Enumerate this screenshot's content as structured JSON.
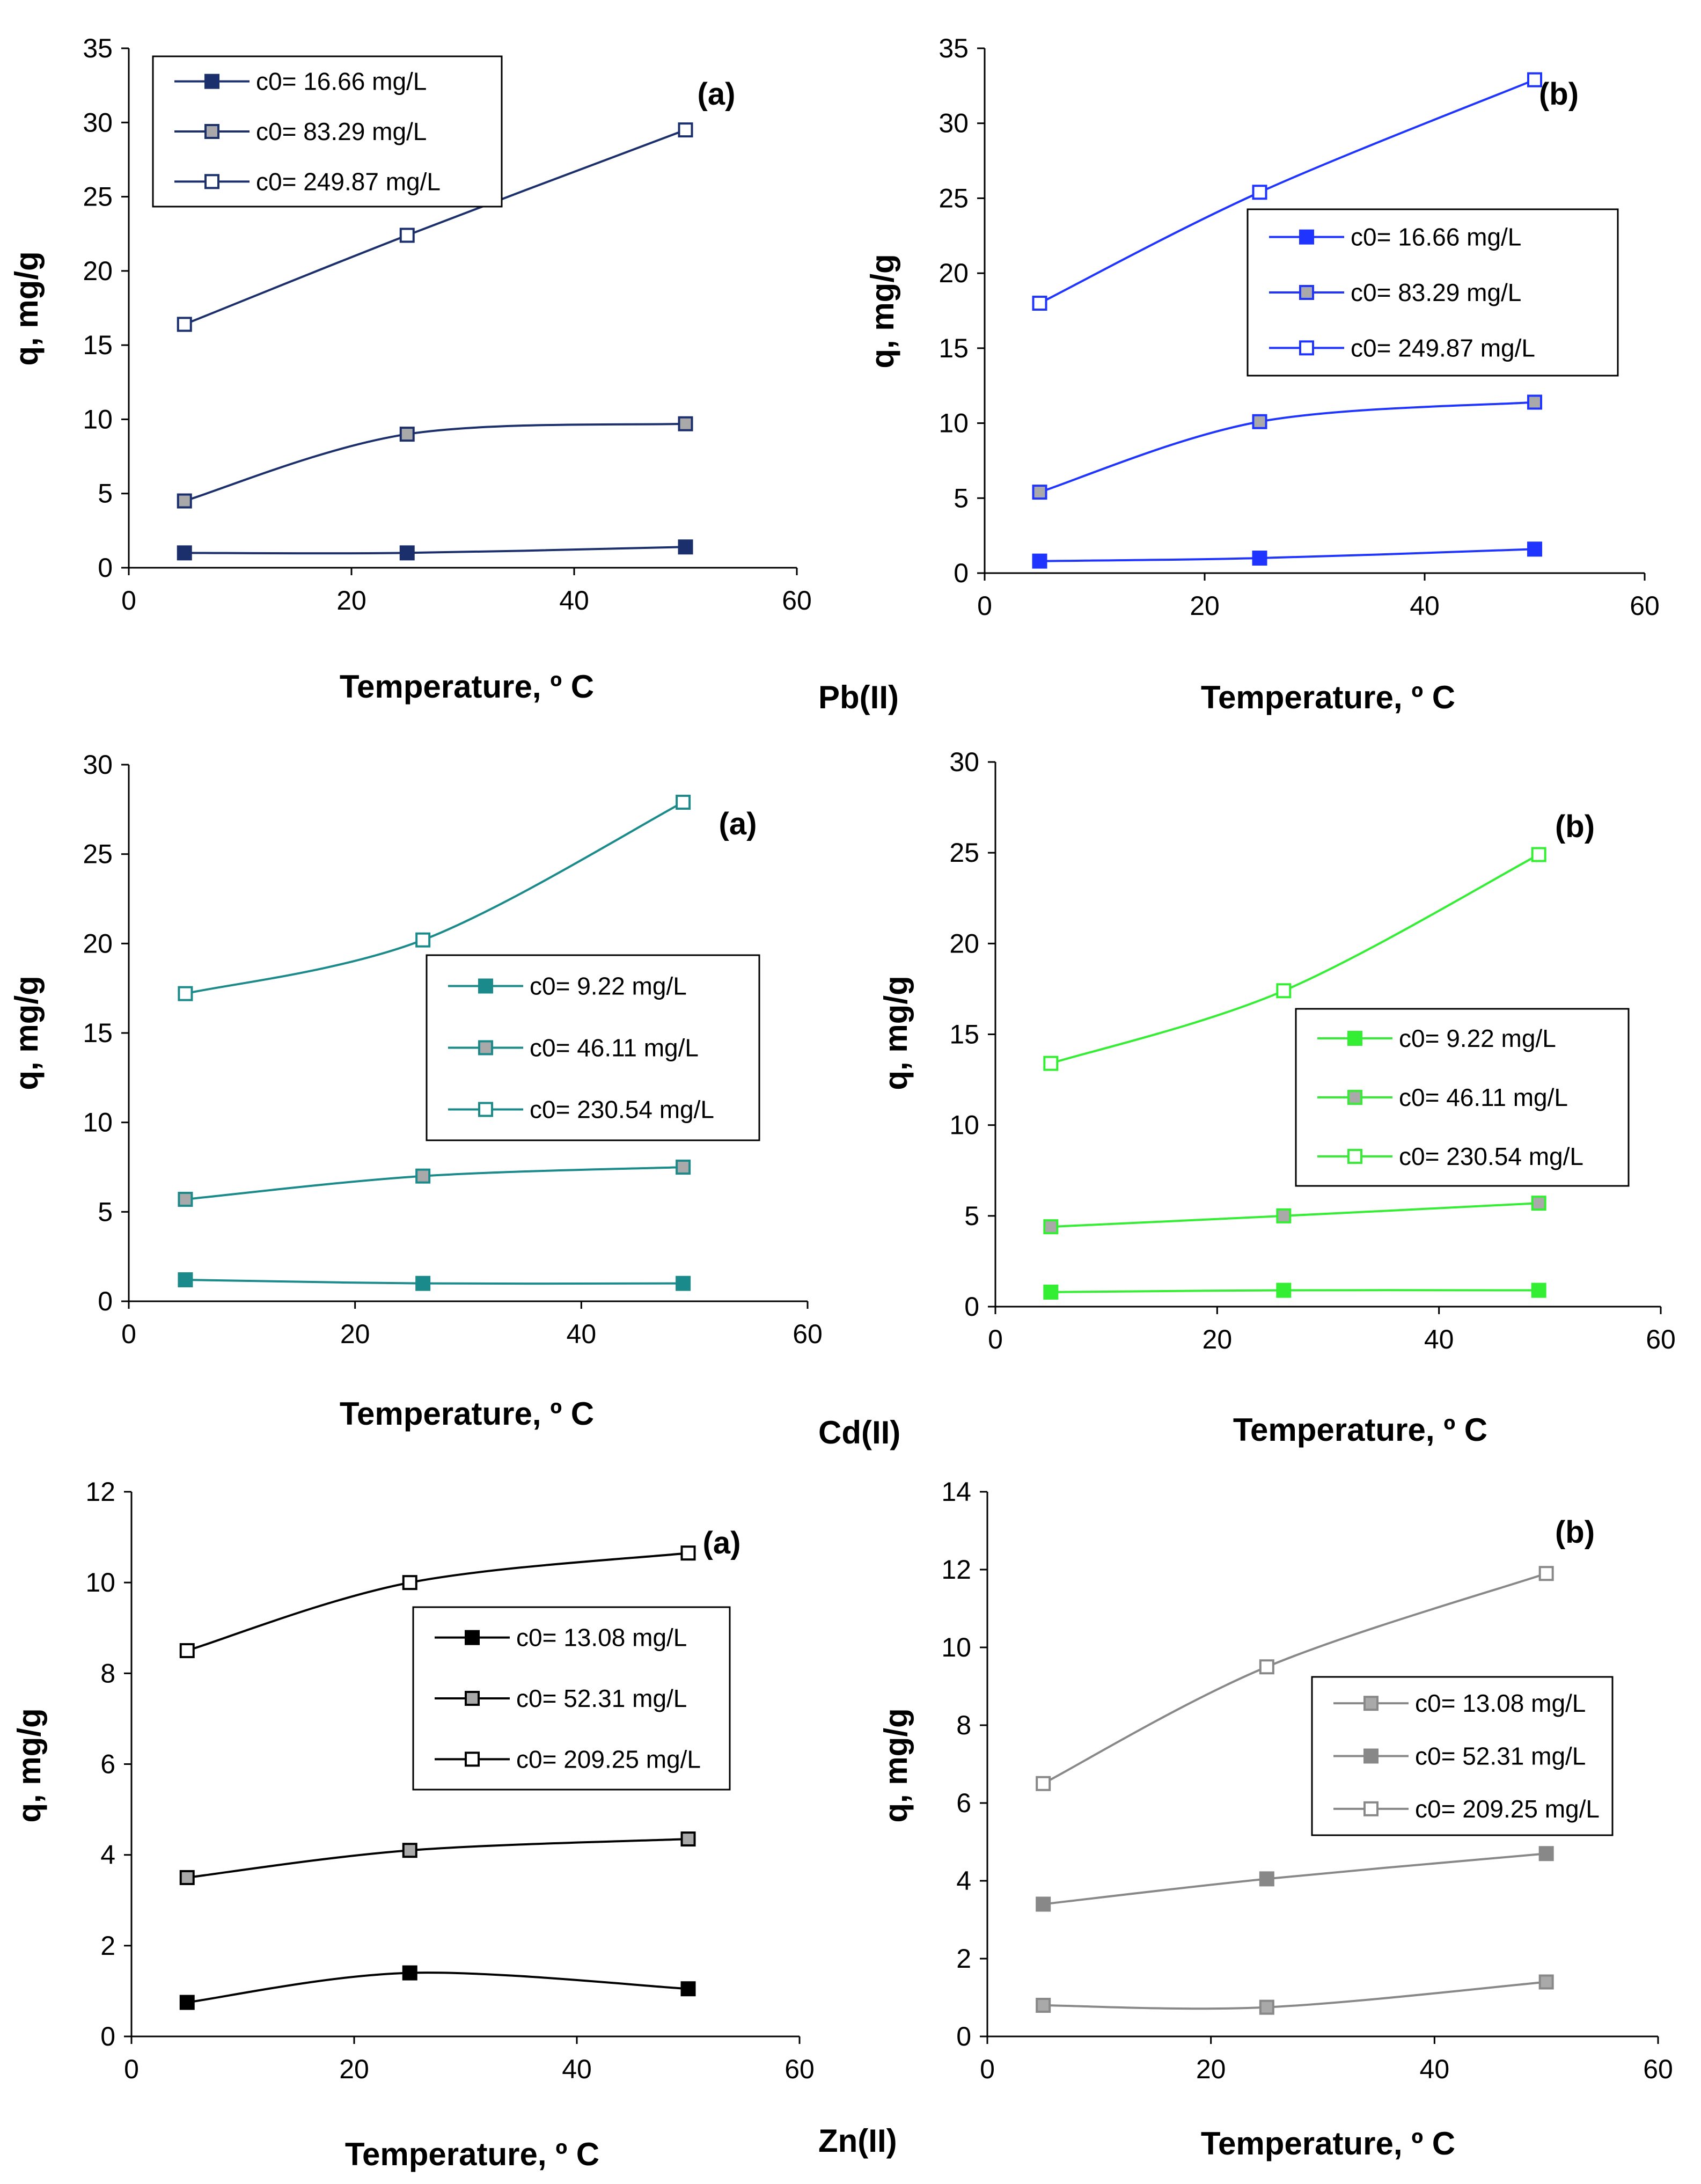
{
  "figure_labels": [
    "Pb(II)",
    "Cd(II)",
    "Zn(II)"
  ],
  "colors": {
    "pb_a": "#1a2f6b",
    "pb_b": "#1f35ff",
    "cd_a": "#1b8a8a",
    "cd_b": "#33ee33",
    "zn_a": "#000000",
    "zn_b": "#888888"
  },
  "chart_data": [
    {
      "type": "line",
      "metal": "Pb(II)",
      "panel": "(a)",
      "xlabel": "Temperature, º C",
      "ylabel": "q, mg/g",
      "xlim": [
        0,
        60
      ],
      "ylim": [
        0,
        35
      ],
      "xticks": [
        0,
        20,
        40,
        60
      ],
      "yticks": [
        0,
        5,
        10,
        15,
        20,
        25,
        30,
        35
      ],
      "legend_position": "top-left",
      "color_key": "pb_a",
      "x": [
        5,
        25,
        50
      ],
      "series": [
        {
          "name": "c0= 16.66 mg/L",
          "marker": "filled",
          "values": [
            1.0,
            1.0,
            1.4
          ]
        },
        {
          "name": "c0= 83.29 mg/L",
          "marker": "gray",
          "values": [
            4.5,
            9.0,
            9.7
          ]
        },
        {
          "name": "c0= 249.87 mg/L",
          "marker": "open",
          "values": [
            16.4,
            22.4,
            29.5
          ]
        }
      ]
    },
    {
      "type": "line",
      "metal": "Pb(II)",
      "panel": "(b)",
      "xlabel": "Temperature, º C",
      "ylabel": "q, mg/g",
      "xlim": [
        0,
        60
      ],
      "ylim": [
        0,
        35
      ],
      "xticks": [
        0,
        20,
        40,
        60
      ],
      "yticks": [
        0,
        5,
        10,
        15,
        20,
        25,
        30,
        35
      ],
      "legend_position": "center-right",
      "color_key": "pb_b",
      "x": [
        5,
        25,
        50
      ],
      "series": [
        {
          "name": "c0= 16.66 mg/L",
          "marker": "filled",
          "values": [
            0.8,
            1.0,
            1.6
          ]
        },
        {
          "name": "c0= 83.29 mg/L",
          "marker": "gray",
          "values": [
            5.4,
            10.1,
            11.4
          ]
        },
        {
          "name": "c0= 249.87 mg/L",
          "marker": "open",
          "values": [
            18.0,
            25.4,
            32.9
          ]
        }
      ]
    },
    {
      "type": "line",
      "metal": "Cd(II)",
      "panel": "(a)",
      "xlabel": "Temperature, º C",
      "ylabel": "q, mg/g",
      "xlim": [
        0,
        60
      ],
      "ylim": [
        0,
        30
      ],
      "xticks": [
        0,
        20,
        40,
        60
      ],
      "yticks": [
        0,
        5,
        10,
        15,
        20,
        25,
        30
      ],
      "legend_position": "center-right",
      "color_key": "cd_a",
      "x": [
        5,
        26,
        49
      ],
      "series": [
        {
          "name": "c0= 9.22 mg/L",
          "marker": "filled",
          "values": [
            1.2,
            1.0,
            1.0
          ]
        },
        {
          "name": "c0= 46.11 mg/L",
          "marker": "gray",
          "values": [
            5.7,
            7.0,
            7.5
          ]
        },
        {
          "name": "c0= 230.54 mg/L",
          "marker": "open",
          "values": [
            17.2,
            20.2,
            27.9
          ]
        }
      ]
    },
    {
      "type": "line",
      "metal": "Cd(II)",
      "panel": "(b)",
      "xlabel": "Temperature, º C",
      "ylabel": "q, mg/g",
      "xlim": [
        0,
        60
      ],
      "ylim": [
        0,
        30
      ],
      "xticks": [
        0,
        20,
        40,
        60
      ],
      "yticks": [
        0,
        5,
        10,
        15,
        20,
        25,
        30
      ],
      "legend_position": "center-right",
      "color_key": "cd_b",
      "x": [
        5,
        26,
        49
      ],
      "series": [
        {
          "name": "c0= 9.22 mg/L",
          "marker": "filled",
          "values": [
            0.8,
            0.9,
            0.9
          ]
        },
        {
          "name": "c0= 46.11 mg/L",
          "marker": "gray",
          "values": [
            4.4,
            5.0,
            5.7
          ]
        },
        {
          "name": "c0= 230.54 mg/L",
          "marker": "open",
          "values": [
            13.4,
            17.4,
            24.9
          ]
        }
      ]
    },
    {
      "type": "line",
      "metal": "Zn(II)",
      "panel": "(a)",
      "xlabel": "Temperature, º C",
      "ylabel": "q, mg/g",
      "xlim": [
        0,
        60
      ],
      "ylim": [
        0,
        12
      ],
      "xticks": [
        0,
        20,
        40,
        60
      ],
      "yticks": [
        0,
        2,
        4,
        6,
        8,
        10,
        12
      ],
      "legend_position": "center-right",
      "color_key": "zn_a",
      "x": [
        5,
        25,
        50
      ],
      "series": [
        {
          "name": "c0= 13.08 mg/L",
          "marker": "filled",
          "values": [
            0.75,
            1.4,
            1.05
          ]
        },
        {
          "name": "c0= 52.31 mg/L",
          "marker": "gray",
          "values": [
            3.5,
            4.1,
            4.35
          ]
        },
        {
          "name": "c0= 209.25 mg/L",
          "marker": "open",
          "values": [
            8.5,
            10.0,
            10.65
          ]
        }
      ]
    },
    {
      "type": "line",
      "metal": "Zn(II)",
      "panel": "(b)",
      "xlabel": "Temperature, º C",
      "ylabel": "q, mg/g",
      "xlim": [
        0,
        60
      ],
      "ylim": [
        0,
        14
      ],
      "xticks": [
        0,
        20,
        40,
        60
      ],
      "yticks": [
        0,
        2,
        4,
        6,
        8,
        10,
        12,
        14
      ],
      "legend_position": "center-right",
      "color_key": "zn_b",
      "x": [
        5,
        25,
        50
      ],
      "series": [
        {
          "name": "c0= 13.08 mg/L",
          "marker": "gray",
          "values": [
            0.8,
            0.75,
            1.4
          ]
        },
        {
          "name": "c0= 52.31 mg/L",
          "marker": "filled",
          "values": [
            3.4,
            4.05,
            4.7
          ]
        },
        {
          "name": "c0= 209.25 mg/L",
          "marker": "open",
          "values": [
            6.5,
            9.5,
            11.9
          ]
        }
      ]
    }
  ]
}
